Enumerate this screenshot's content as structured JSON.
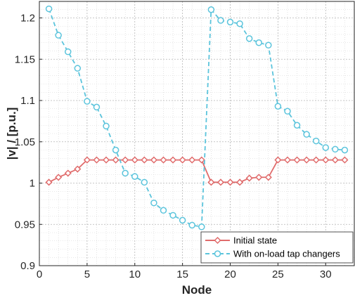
{
  "chart_data": {
    "type": "line",
    "xlabel": "Node",
    "ylabel": "|v| / [p.u.]",
    "xlim": [
      0,
      33
    ],
    "ylim": [
      0.9,
      1.22
    ],
    "xticks": [
      0,
      5,
      10,
      15,
      20,
      25,
      30
    ],
    "yticks": [
      0.9,
      0.95,
      1,
      1.05,
      1.1,
      1.15,
      1.2
    ],
    "ytick_labels": [
      "0.9",
      "0.95",
      "1",
      "1.05",
      "1.1",
      "1.15",
      "1.2"
    ],
    "grid": "on (major and minor, dotted)",
    "legend_position": "bottom-right",
    "x": [
      1,
      2,
      3,
      4,
      5,
      6,
      7,
      8,
      9,
      10,
      11,
      12,
      13,
      14,
      15,
      16,
      17,
      18,
      19,
      20,
      21,
      22,
      23,
      24,
      25,
      26,
      27,
      28,
      29,
      30,
      31,
      32
    ],
    "series": [
      {
        "name": "Initial state",
        "color": "#e06b6b",
        "line_style": "solid",
        "marker": "diamond",
        "values": [
          1.001,
          1.007,
          1.012,
          1.017,
          1.028,
          1.028,
          1.028,
          1.028,
          1.028,
          1.028,
          1.028,
          1.028,
          1.028,
          1.028,
          1.028,
          1.028,
          1.028,
          1.001,
          1.001,
          1.001,
          1.001,
          1.006,
          1.007,
          1.007,
          1.028,
          1.028,
          1.028,
          1.028,
          1.028,
          1.028,
          1.028,
          1.028
        ]
      },
      {
        "name": "With on-load tap changers",
        "color": "#5bc4dc",
        "line_style": "dashed",
        "marker": "circle",
        "values": [
          1.211,
          1.179,
          1.159,
          1.139,
          1.099,
          1.092,
          1.069,
          1.04,
          1.012,
          1.008,
          1.001,
          0.976,
          0.967,
          0.961,
          0.955,
          0.949,
          0.947,
          1.21,
          1.197,
          1.195,
          1.193,
          1.175,
          1.17,
          1.167,
          1.093,
          1.087,
          1.07,
          1.059,
          1.051,
          1.043,
          1.041,
          1.04
        ]
      }
    ]
  }
}
